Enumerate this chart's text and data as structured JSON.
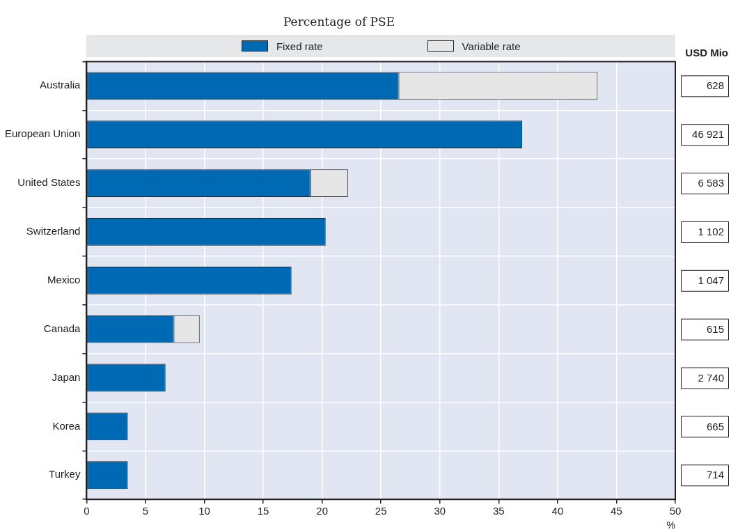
{
  "chart_data": {
    "type": "bar",
    "orientation": "horizontal",
    "stacked": true,
    "title": "Percentage of PSE",
    "xlabel": "%",
    "categories": [
      "Australia",
      "European Union",
      "United States",
      "Switzerland",
      "Mexico",
      "Canada",
      "Japan",
      "Korea",
      "Turkey"
    ],
    "series": [
      {
        "name": "Fixed rate",
        "color": "#0069b4",
        "values": [
          26.5,
          37.0,
          19.0,
          20.3,
          17.4,
          7.4,
          6.7,
          3.5,
          3.5
        ]
      },
      {
        "name": "Variable rate",
        "color": "#e6e6e6",
        "values": [
          16.9,
          null,
          3.2,
          null,
          null,
          2.2,
          null,
          null,
          null
        ]
      }
    ],
    "xlim": [
      0,
      50
    ],
    "xticks": [
      0,
      5,
      10,
      15,
      20,
      25,
      30,
      35,
      40,
      45,
      50
    ],
    "grid": true,
    "legend": "top",
    "annotations": [
      "USD Mio",
      "628",
      "46 921",
      "6 583",
      "1 102",
      "1 047",
      "615",
      "2 740",
      "665",
      "714"
    ]
  }
}
